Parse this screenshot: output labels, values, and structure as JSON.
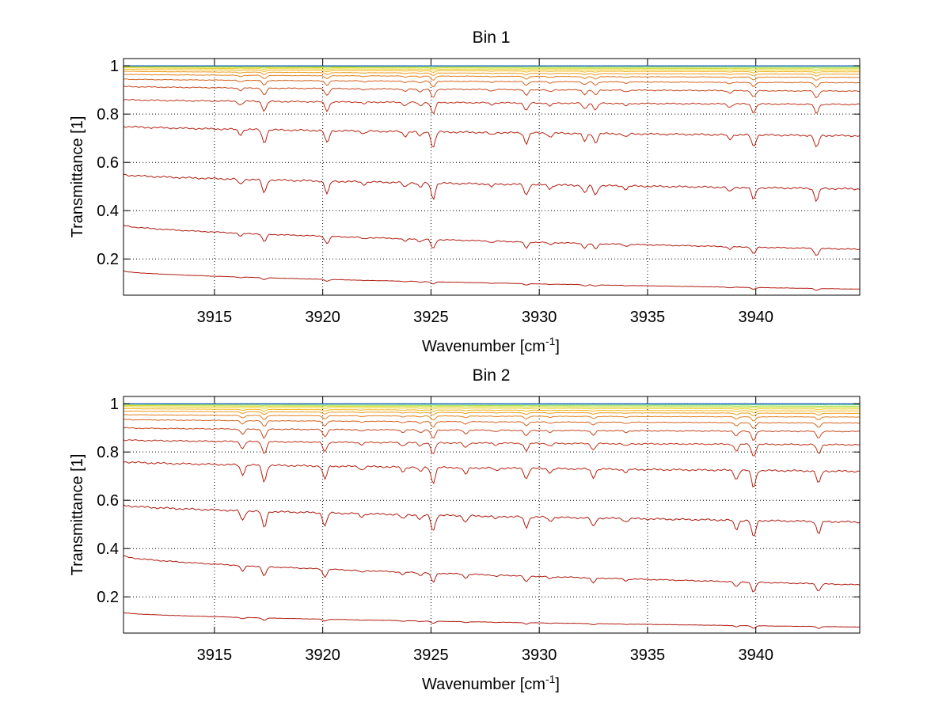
{
  "figure": {
    "background": "#ffffff"
  },
  "chart_data": [
    {
      "type": "line",
      "title": "Bin 1",
      "xlabel_main": "Wavenumber [cm",
      "xlabel_sup": "-1",
      "xlabel_end": "]",
      "ylabel": "Transmittance [1]",
      "xlim": [
        3910.8,
        3944.8
      ],
      "ylim": [
        0.05,
        1.03
      ],
      "xticks": [
        3915,
        3920,
        3925,
        3930,
        3935,
        3940
      ],
      "xtick_labels": [
        "3915",
        "3920",
        "3925",
        "3930",
        "3935",
        "3940"
      ],
      "yticks": [
        0.2,
        0.4,
        0.6,
        0.8,
        1.0
      ],
      "ytick_labels": [
        "0.2",
        "0.4",
        "0.6",
        "0.8",
        "1"
      ],
      "grid": true,
      "legend": "none",
      "absorption_lines": [
        {
          "x": 3917.3,
          "depth": 1.0
        },
        {
          "x": 3920.2,
          "depth": 0.95
        },
        {
          "x": 3925.1,
          "depth": 1.2
        },
        {
          "x": 3929.4,
          "depth": 0.8
        },
        {
          "x": 3932.1,
          "depth": 0.6
        },
        {
          "x": 3932.6,
          "depth": 0.7
        },
        {
          "x": 3939.9,
          "depth": 0.9
        },
        {
          "x": 3942.8,
          "depth": 0.95
        },
        {
          "x": 3916.2,
          "depth": 0.4
        },
        {
          "x": 3923.8,
          "depth": 0.35
        },
        {
          "x": 3924.5,
          "depth": 0.35
        },
        {
          "x": 3930.5,
          "depth": 0.3
        },
        {
          "x": 3934.0,
          "depth": 0.25
        },
        {
          "x": 3938.8,
          "depth": 0.35
        },
        {
          "x": 3927.8,
          "depth": 0.2
        },
        {
          "x": 3921.9,
          "depth": 0.2
        }
      ],
      "series": [
        {
          "start": 0.15,
          "end": 0.075,
          "scale": 0.08,
          "color": "#b11b10"
        },
        {
          "start": 0.34,
          "end": 0.24,
          "scale": 0.32,
          "color": "#b11b10"
        },
        {
          "start": 0.55,
          "end": 0.49,
          "scale": 0.55,
          "color": "#b11b10"
        },
        {
          "start": 0.75,
          "end": 0.71,
          "scale": 0.55,
          "color": "#b82211"
        },
        {
          "start": 0.86,
          "end": 0.84,
          "scale": 0.4,
          "color": "#c0321a"
        },
        {
          "start": 0.915,
          "end": 0.895,
          "scale": 0.3,
          "color": "#c9481f"
        },
        {
          "start": 0.945,
          "end": 0.93,
          "scale": 0.2,
          "color": "#d6631f"
        },
        {
          "start": 0.965,
          "end": 0.952,
          "scale": 0.14,
          "color": "#e27e1d"
        },
        {
          "start": 0.978,
          "end": 0.965,
          "scale": 0.09,
          "color": "#ec9b1a"
        },
        {
          "start": 0.986,
          "end": 0.975,
          "scale": 0.06,
          "color": "#f2b61c"
        },
        {
          "start": 0.992,
          "end": 0.982,
          "scale": 0.04,
          "color": "#e8cd20"
        },
        {
          "start": 0.996,
          "end": 0.988,
          "scale": 0.025,
          "color": "#cfdc2b"
        },
        {
          "start": 0.998,
          "end": 0.993,
          "scale": 0.015,
          "color": "#9fe04a"
        },
        {
          "start": 1.0,
          "end": 0.998,
          "scale": 0.008,
          "color": "#5fd77a"
        },
        {
          "start": 1.0,
          "end": 1.0,
          "scale": 0.004,
          "color": "#1fa8c8"
        },
        {
          "start": 1.0,
          "end": 1.0,
          "scale": 0.002,
          "color": "#1246c9"
        }
      ]
    },
    {
      "type": "line",
      "title": "Bin 2",
      "xlabel_main": "Wavenumber [cm",
      "xlabel_sup": "-1",
      "xlabel_end": "]",
      "ylabel": "Transmittance [1]",
      "xlim": [
        3910.8,
        3944.8
      ],
      "ylim": [
        0.05,
        1.03
      ],
      "xticks": [
        3915,
        3920,
        3925,
        3930,
        3935,
        3940
      ],
      "xtick_labels": [
        "3915",
        "3920",
        "3925",
        "3930",
        "3935",
        "3940"
      ],
      "yticks": [
        0.2,
        0.4,
        0.6,
        0.8,
        1.0
      ],
      "ytick_labels": [
        "0.2",
        "0.4",
        "0.6",
        "0.8",
        "1"
      ],
      "grid": true,
      "legend": "none",
      "absorption_lines": [
        {
          "x": 3916.3,
          "depth": 0.75
        },
        {
          "x": 3917.3,
          "depth": 1.25
        },
        {
          "x": 3920.1,
          "depth": 1.0
        },
        {
          "x": 3925.1,
          "depth": 1.2
        },
        {
          "x": 3926.6,
          "depth": 0.5
        },
        {
          "x": 3929.4,
          "depth": 0.8
        },
        {
          "x": 3932.5,
          "depth": 0.65
        },
        {
          "x": 3939.1,
          "depth": 0.7
        },
        {
          "x": 3939.9,
          "depth": 1.3
        },
        {
          "x": 3942.9,
          "depth": 0.95
        },
        {
          "x": 3923.7,
          "depth": 0.35
        },
        {
          "x": 3924.5,
          "depth": 0.35
        },
        {
          "x": 3930.5,
          "depth": 0.3
        },
        {
          "x": 3934.0,
          "depth": 0.25
        },
        {
          "x": 3921.8,
          "depth": 0.25
        },
        {
          "x": 3928.0,
          "depth": 0.2
        }
      ],
      "series": [
        {
          "start": 0.135,
          "end": 0.075,
          "scale": 0.08,
          "color": "#b11b10"
        },
        {
          "start": 0.37,
          "end": 0.25,
          "scale": 0.32,
          "color": "#b11b10"
        },
        {
          "start": 0.58,
          "end": 0.51,
          "scale": 0.55,
          "color": "#b11b10"
        },
        {
          "start": 0.76,
          "end": 0.72,
          "scale": 0.55,
          "color": "#b82211"
        },
        {
          "start": 0.85,
          "end": 0.83,
          "scale": 0.4,
          "color": "#c0321a"
        },
        {
          "start": 0.9,
          "end": 0.885,
          "scale": 0.3,
          "color": "#c9481f"
        },
        {
          "start": 0.935,
          "end": 0.92,
          "scale": 0.2,
          "color": "#d6631f"
        },
        {
          "start": 0.955,
          "end": 0.945,
          "scale": 0.14,
          "color": "#e27e1d"
        },
        {
          "start": 0.97,
          "end": 0.96,
          "scale": 0.09,
          "color": "#ec9b1a"
        },
        {
          "start": 0.98,
          "end": 0.97,
          "scale": 0.06,
          "color": "#f2b61c"
        },
        {
          "start": 0.988,
          "end": 0.978,
          "scale": 0.04,
          "color": "#e8cd20"
        },
        {
          "start": 0.993,
          "end": 0.985,
          "scale": 0.025,
          "color": "#cfdc2b"
        },
        {
          "start": 0.997,
          "end": 0.99,
          "scale": 0.015,
          "color": "#9fe04a"
        },
        {
          "start": 1.0,
          "end": 0.996,
          "scale": 0.008,
          "color": "#5fd77a"
        },
        {
          "start": 1.0,
          "end": 1.0,
          "scale": 0.004,
          "color": "#1fa8c8"
        },
        {
          "start": 1.0,
          "end": 1.0,
          "scale": 0.002,
          "color": "#1246c9"
        }
      ]
    }
  ]
}
